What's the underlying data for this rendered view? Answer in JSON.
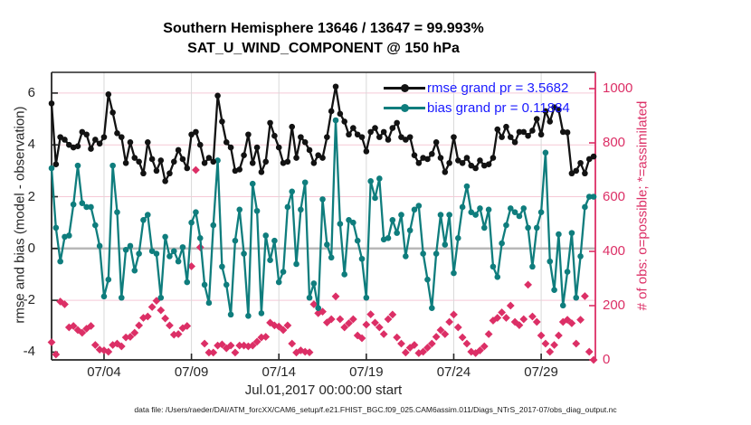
{
  "title": {
    "line1": "Southern Hemisphere 13646 / 13647 = 99.993%",
    "line2": "SAT_U_WIND_COMPONENT @ 150 hPa"
  },
  "legend": {
    "rmse": {
      "label": "rmse grand pr = 3.5682",
      "marker_color": "#121212"
    },
    "bias": {
      "label": "bias grand pr = 0.11884",
      "marker_color": "#0f7d7d"
    }
  },
  "axes": {
    "left_label": "rmse and bias (model - observation)",
    "right_label": "# of obs: o=possible; *=assimilated",
    "x_label": "Jul.01,2017 00:00:00 start",
    "x_ticks": [
      {
        "day": 3,
        "label": "07/04"
      },
      {
        "day": 8,
        "label": "07/09"
      },
      {
        "day": 13,
        "label": "07/14"
      },
      {
        "day": 18,
        "label": "07/19"
      },
      {
        "day": 23,
        "label": "07/24"
      },
      {
        "day": 28,
        "label": "07/29"
      }
    ],
    "left_ticks": [
      6,
      4,
      2,
      0,
      -2,
      -4
    ],
    "right_ticks": [
      1000,
      800,
      600,
      400,
      200,
      0
    ]
  },
  "footer": {
    "datafile": "data file: /Users/raeder/DAI/ATM_forcXX/CAM6_setup/f.e21.FHIST_BGC.f09_025.CAM6assim.011/Diags_NTrS_2017-07/obs_diag_output.nc"
  },
  "colors": {
    "rmse_line": "#121212",
    "bias_line": "#0f7d7d",
    "obs_marker": "#dc2f66",
    "legend_text": "#1a1aff",
    "grid_h": "#f5c9d6",
    "grid_v": "#d9d9d9",
    "zero_line": "#b8b8b8",
    "spine": "#262626",
    "right_axis": "#dc2f66"
  },
  "chart_data": {
    "type": "line",
    "x_start_label": "Jul.01,2017 00:00:00",
    "x_step_days": 0.25,
    "xlim_days": [
      0,
      31.1
    ],
    "ylim_left": [
      -4.3,
      6.8
    ],
    "ylim_right": [
      0,
      1060
    ],
    "series": [
      {
        "name": "rmse grand pr = 3.5682",
        "axis": "left",
        "values": [
          5.6,
          3.25,
          4.3,
          4.2,
          4.0,
          3.9,
          3.95,
          4.5,
          4.4,
          3.85,
          4.2,
          4.05,
          4.3,
          5.95,
          5.25,
          4.45,
          4.3,
          3.3,
          4.1,
          3.5,
          3.35,
          2.9,
          4.1,
          3.45,
          3.0,
          3.4,
          2.6,
          2.9,
          3.35,
          3.8,
          3.45,
          3.1,
          4.4,
          4.5,
          4.0,
          3.3,
          3.5,
          3.35,
          5.9,
          4.9,
          4.1,
          3.9,
          3.0,
          3.05,
          3.6,
          4.4,
          3.3,
          3.9,
          2.95,
          3.35,
          4.85,
          4.35,
          3.9,
          3.3,
          3.35,
          4.7,
          3.5,
          4.3,
          4.1,
          3.8,
          3.3,
          3.6,
          3.5,
          4.3,
          5.3,
          6.25,
          5.2,
          4.9,
          4.4,
          4.65,
          4.4,
          4.3,
          3.75,
          4.5,
          4.65,
          4.3,
          4.5,
          4.2,
          4.65,
          4.85,
          4.3,
          4.2,
          4.3,
          3.6,
          3.3,
          3.5,
          3.45,
          3.65,
          4.1,
          3.5,
          2.95,
          3.3,
          4.3,
          3.4,
          3.3,
          3.5,
          3.2,
          3.1,
          3.4,
          3.2,
          3.25,
          3.5,
          4.6,
          4.3,
          4.7,
          4.3,
          4.1,
          4.5,
          4.5,
          4.35,
          4.55,
          5.0,
          4.4,
          5.3,
          4.9,
          5.45,
          5.35,
          4.5,
          4.48,
          2.9,
          3.0,
          3.3,
          2.9,
          3.45,
          3.55
        ]
      },
      {
        "name": "bias grand pr = 0.11884",
        "axis": "left",
        "values": [
          3.1,
          0.8,
          -0.5,
          0.45,
          0.5,
          1.7,
          3.2,
          1.75,
          1.6,
          1.6,
          0.9,
          0.1,
          -1.85,
          -1.2,
          3.2,
          1.4,
          -1.9,
          -0.05,
          0.1,
          -0.85,
          -0.2,
          1.1,
          1.3,
          -0.1,
          -0.2,
          -1.9,
          0.45,
          -0.3,
          -0.1,
          -0.5,
          0.05,
          -1.3,
          1.0,
          1.4,
          0.4,
          -1.4,
          -2.1,
          0.9,
          3.4,
          -0.7,
          -1.4,
          -2.55,
          0.3,
          1.5,
          -0.2,
          -2.6,
          2.5,
          1.45,
          -2.5,
          0.5,
          -0.45,
          0.3,
          -1.3,
          -0.9,
          1.6,
          2.2,
          -0.6,
          1.5,
          2.55,
          -1.9,
          -1.35,
          -2.3,
          1.9,
          0.15,
          -0.35,
          4.95,
          0.95,
          -1.0,
          1.1,
          1.0,
          0.3,
          -0.4,
          -1.9,
          2.6,
          1.95,
          2.7,
          0.35,
          0.4,
          1.1,
          0.6,
          1.3,
          -0.3,
          0.7,
          1.5,
          1.65,
          -0.2,
          -1.2,
          -2.3,
          -0.2,
          1.3,
          0.15,
          1.3,
          -0.95,
          0.4,
          1.6,
          2.4,
          1.4,
          1.3,
          1.55,
          0.8,
          1.5,
          -0.7,
          -1.1,
          0.2,
          0.9,
          1.55,
          1.4,
          1.25,
          1.55,
          0.8,
          -0.7,
          0.8,
          1.4,
          3.7,
          -0.5,
          -1.6,
          0.55,
          -2.2,
          -0.9,
          0.6,
          -1.9,
          -0.3,
          1.6,
          2.0,
          2.0
        ]
      },
      {
        "name": "# of obs (possible/assimilated)",
        "axis": "right",
        "values": [
          65,
          20,
          215,
          205,
          120,
          125,
          110,
          100,
          115,
          125,
          55,
          38,
          35,
          30,
          55,
          60,
          50,
          83,
          85,
          100,
          127,
          155,
          160,
          195,
          218,
          183,
          153,
          127,
          93,
          95,
          117,
          125,
          345,
          700,
          415,
          60,
          27,
          27,
          53,
          57,
          43,
          53,
          27,
          53,
          53,
          50,
          53,
          67,
          83,
          85,
          137,
          127,
          123,
          110,
          127,
          60,
          27,
          35,
          30,
          28,
          205,
          172,
          178,
          138,
          150,
          234,
          150,
          120,
          135,
          150,
          90,
          80,
          130,
          168,
          137,
          120,
          95,
          150,
          167,
          83,
          60,
          27,
          45,
          55,
          25,
          30,
          45,
          60,
          85,
          110,
          95,
          140,
          167,
          120,
          83,
          60,
          30,
          25,
          35,
          50,
          95,
          145,
          155,
          175,
          155,
          200,
          140,
          128,
          150,
          277,
          160,
          140,
          90,
          60,
          30,
          55,
          90,
          140,
          148,
          135,
          60,
          148,
          235,
          30,
          0
        ]
      }
    ]
  }
}
